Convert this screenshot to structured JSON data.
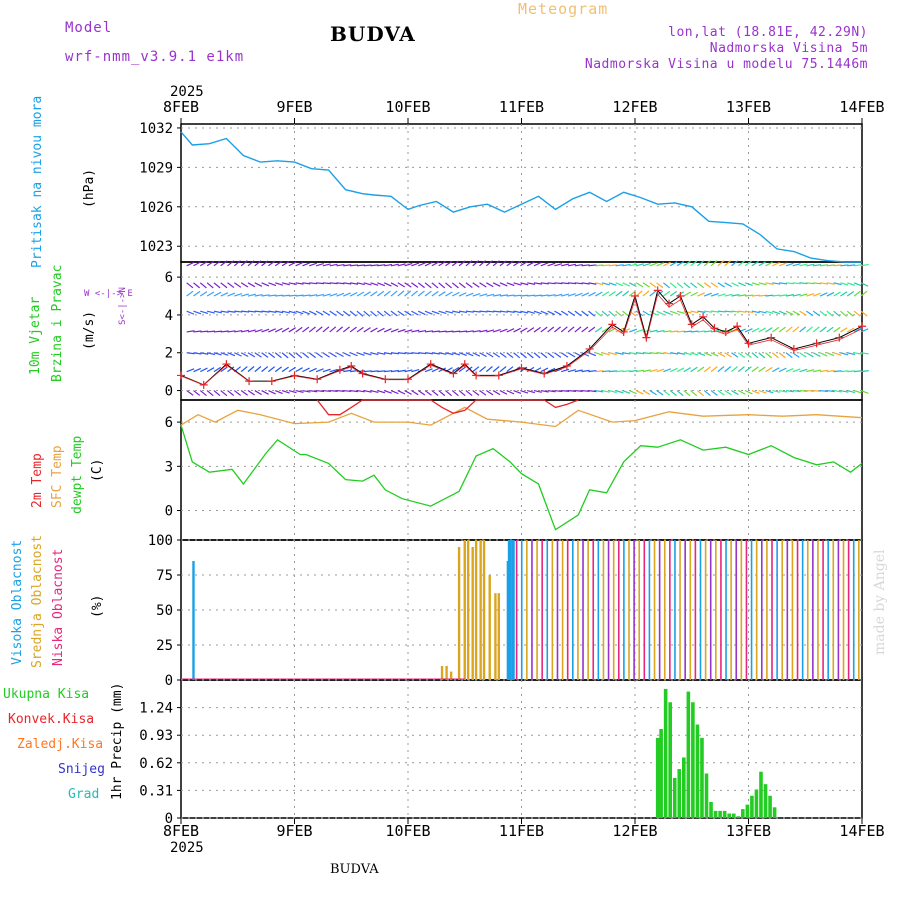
{
  "header": {
    "model_label": "Model",
    "model_name": "wrf-nmm_v3.9.1  e1km",
    "title": "BUDVA",
    "meteogram": "Meteogram",
    "coords": "lon,lat (18.81E, 42.29N)",
    "elevation": "Nadmorska Visina 5m",
    "model_elevation": "Nadmorska Visina u modelu 75.1446m",
    "footer": "BUDVA",
    "watermark": "made by Angel"
  },
  "colors": {
    "pressure": "#1aa0e6",
    "wind_label": "#22cc22",
    "purple": "#9933cc",
    "t2m": "#e8262a",
    "sfc": "#e8a33c",
    "dew": "#22cc22",
    "high_cloud": "#1aa0e6",
    "mid_cloud": "#daa520",
    "low_cloud": "#e8267f",
    "total": "#22cc22",
    "convective": "#e8262a",
    "stratiform": "#ff7722",
    "snow": "#3333cc",
    "graupel": "#22bbbb"
  },
  "chart_data": [
    {
      "type": "line",
      "panel": "pressure",
      "ylabel_left": "Pritisak na nivou mora",
      "ylabel_unit": "(hPa)",
      "x_ticks": [
        "8FEB",
        "9FEB",
        "10FEB",
        "11FEB",
        "12FEB",
        "13FEB",
        "14FEB"
      ],
      "x_year": "2025",
      "yticks": [
        "1032",
        "1029",
        "1026",
        "1023"
      ],
      "ylim": [
        1021.8,
        1032.3
      ],
      "x_days": [
        0,
        0.1,
        0.25,
        0.4,
        0.55,
        0.7,
        0.85,
        1.0,
        1.15,
        1.3,
        1.45,
        1.6,
        1.7,
        1.85,
        2.0,
        2.1,
        2.25,
        2.4,
        2.55,
        2.7,
        2.85,
        3.0,
        3.15,
        3.3,
        3.45,
        3.6,
        3.75,
        3.9,
        4.05,
        4.2,
        4.35,
        4.5,
        4.65,
        4.8,
        4.95,
        5.1,
        5.25,
        5.4,
        5.55,
        5.7,
        5.85,
        6.0
      ],
      "values": [
        1031.7,
        1030.7,
        1030.8,
        1031.2,
        1029.9,
        1029.4,
        1029.5,
        1029.4,
        1028.9,
        1028.8,
        1027.3,
        1027.0,
        1026.9,
        1026.8,
        1025.8,
        1026.1,
        1026.4,
        1025.6,
        1026.0,
        1026.2,
        1025.6,
        1026.2,
        1026.8,
        1025.8,
        1026.6,
        1027.1,
        1026.4,
        1027.1,
        1026.7,
        1026.2,
        1026.3,
        1026.0,
        1024.9,
        1024.8,
        1024.7,
        1023.9,
        1022.8,
        1022.6,
        1022.1,
        1021.9,
        1021.8,
        1021.8
      ]
    },
    {
      "type": "line",
      "panel": "wind",
      "ylabel_left_1": "10m Vjetar",
      "ylabel_left_2": "Brzina i Pravac",
      "ylabel_unit": "(m/s)",
      "compass": "W <-|-> E",
      "compass_ns": "S<-|->N",
      "yticks": [
        "6",
        "4",
        "2",
        "0"
      ],
      "ylim": [
        -0.5,
        6.8
      ],
      "x_days": [
        0,
        0.2,
        0.4,
        0.6,
        0.8,
        1.0,
        1.2,
        1.4,
        1.5,
        1.6,
        1.8,
        2.0,
        2.2,
        2.4,
        2.5,
        2.6,
        2.8,
        3.0,
        3.2,
        3.4,
        3.6,
        3.8,
        3.9,
        4.0,
        4.1,
        4.2,
        4.3,
        4.4,
        4.5,
        4.6,
        4.7,
        4.8,
        4.9,
        5.0,
        5.2,
        5.4,
        5.6,
        5.8,
        6.0
      ],
      "values": [
        0.8,
        0.3,
        1.4,
        0.5,
        0.5,
        0.8,
        0.6,
        1.1,
        1.3,
        0.9,
        0.6,
        0.6,
        1.4,
        0.9,
        1.4,
        0.8,
        0.8,
        1.2,
        0.9,
        1.3,
        2.2,
        3.5,
        3.1,
        5.0,
        2.8,
        5.3,
        4.6,
        5.0,
        3.5,
        3.9,
        3.3,
        3.1,
        3.4,
        2.5,
        2.8,
        2.2,
        2.5,
        2.8,
        3.4
      ]
    },
    {
      "type": "line",
      "panel": "temperature",
      "ylabel_t2m": "2m Temp",
      "ylabel_sfc": "SFC Temp",
      "ylabel_dew": "dewpt Temp",
      "ylabel_unit": "(C)",
      "yticks": [
        "6",
        "3",
        "0"
      ],
      "ylim": [
        -2.0,
        7.5
      ],
      "series": [
        {
          "name": "SFC Temp",
          "x": [
            0,
            0.15,
            0.3,
            0.5,
            0.7,
            1.0,
            1.3,
            1.5,
            1.7,
            2.0,
            2.2,
            2.5,
            2.7,
            3.0,
            3.3,
            3.5,
            3.8,
            4.0,
            4.3,
            4.6,
            5.0,
            5.3,
            5.6,
            6.0
          ],
          "values": [
            5.8,
            6.5,
            6.0,
            6.8,
            6.5,
            5.9,
            6.0,
            6.6,
            6.0,
            6.0,
            5.8,
            7.0,
            6.2,
            6.0,
            5.7,
            6.8,
            6.0,
            6.1,
            6.7,
            6.4,
            6.5,
            6.4,
            6.5,
            6.3
          ]
        },
        {
          "name": "dewpt Temp",
          "x": [
            0,
            0.1,
            0.25,
            0.45,
            0.55,
            0.75,
            0.85,
            1.05,
            1.1,
            1.3,
            1.45,
            1.6,
            1.7,
            1.8,
            1.95,
            2.2,
            2.3,
            2.45,
            2.6,
            2.75,
            2.9,
            3.0,
            3.15,
            3.3,
            3.5,
            3.6,
            3.75,
            3.9,
            4.05,
            4.2,
            4.4,
            4.6,
            4.8,
            5.0,
            5.2,
            5.4,
            5.6,
            5.75,
            5.9,
            6.0
          ],
          "values": [
            5.8,
            3.3,
            2.6,
            2.8,
            1.8,
            3.9,
            4.8,
            3.8,
            3.8,
            3.2,
            2.1,
            2.0,
            2.4,
            1.4,
            0.8,
            0.3,
            0.7,
            1.3,
            3.7,
            4.2,
            3.3,
            2.5,
            1.8,
            -1.3,
            -0.3,
            1.4,
            1.2,
            3.3,
            4.4,
            4.3,
            4.8,
            4.1,
            4.3,
            3.8,
            4.4,
            3.6,
            3.1,
            3.3,
            2.6,
            3.2
          ]
        },
        {
          "name": "2m Temp",
          "x": [
            1.2,
            1.3,
            1.4,
            1.5,
            1.6,
            2.2,
            2.3,
            2.4,
            2.5,
            2.6,
            2.7,
            3.2,
            3.3,
            3.4,
            3.5
          ],
          "values": [
            7.5,
            6.5,
            6.5,
            7.0,
            7.5,
            7.5,
            7.0,
            6.6,
            6.8,
            7.5,
            7.5,
            7.5,
            7.0,
            7.2,
            7.5
          ]
        }
      ]
    },
    {
      "type": "bar",
      "panel": "cloud",
      "ylabel_high": "Visoka Oblacnost",
      "ylabel_mid": "Srednja Oblacnost",
      "ylabel_low": "Niska Oblacnost",
      "ylabel_unit": "(%)",
      "yticks": [
        "100",
        "75",
        "50",
        "25",
        "0"
      ],
      "ylim": [
        0,
        100
      ],
      "series": [
        {
          "name": "Visoka Oblacnost",
          "x": [
            0.11,
            2.88,
            2.89,
            2.9,
            2.92,
            2.93
          ],
          "values": [
            85,
            85,
            100,
            100,
            100,
            100
          ]
        },
        {
          "name": "Srednja Oblacnost",
          "x": [
            2.3,
            2.34,
            2.38,
            2.45,
            2.5,
            2.53,
            2.57,
            2.6,
            2.64,
            2.67,
            2.72,
            2.77,
            2.8
          ],
          "values": [
            10,
            10,
            6,
            95,
            100,
            100,
            95,
            100,
            100,
            100,
            75,
            62,
            62
          ]
        }
      ],
      "overcast_from_day": 2.95,
      "overcast_value": 100
    },
    {
      "type": "bar",
      "panel": "precip",
      "legend": [
        "Ukupna Kisa",
        "Konvek.Kisa",
        "Zaledj.Kisa",
        "Snijeg",
        "Grad"
      ],
      "ylabel_unit": "1hr Precip (mm)",
      "yticks": [
        "1.24",
        "0.93",
        "0.62",
        "0.31",
        "0"
      ],
      "ylim": [
        0,
        1.55
      ],
      "series": [
        {
          "name": "Ukupna Kisa",
          "x": [
            4.2,
            4.23,
            4.27,
            4.31,
            4.35,
            4.39,
            4.43,
            4.47,
            4.51,
            4.55,
            4.59,
            4.63,
            4.67,
            4.71,
            4.75,
            4.79,
            4.83,
            4.87,
            4.91,
            4.95,
            4.99,
            5.03,
            5.07,
            5.11,
            5.15,
            5.19,
            5.23
          ],
          "values": [
            0.9,
            1.0,
            1.45,
            1.3,
            0.45,
            0.55,
            0.68,
            1.42,
            1.3,
            1.05,
            0.9,
            0.5,
            0.18,
            0.08,
            0.08,
            0.08,
            0.05,
            0.05,
            0.02,
            0.1,
            0.15,
            0.25,
            0.32,
            0.52,
            0.38,
            0.25,
            0.12
          ]
        }
      ]
    }
  ]
}
